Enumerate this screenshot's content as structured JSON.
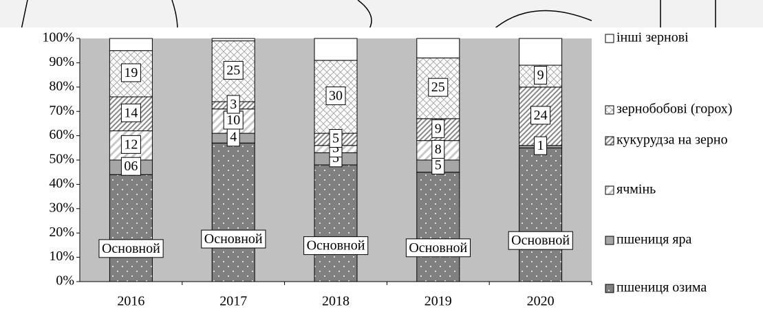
{
  "chart_data": {
    "type": "bar",
    "stacked": true,
    "categories": [
      "2016",
      "2017",
      "2018",
      "2019",
      "2020"
    ],
    "ylim": [
      0,
      100
    ],
    "yticks": [
      {
        "value": 0,
        "label": "0%"
      },
      {
        "value": 10,
        "label": "10%"
      },
      {
        "value": 20,
        "label": "20%"
      },
      {
        "value": 30,
        "label": "30%"
      },
      {
        "value": 40,
        "label": "40%"
      },
      {
        "value": 50,
        "label": "50%"
      },
      {
        "value": 60,
        "label": "60%"
      },
      {
        "value": 70,
        "label": "70%"
      },
      {
        "value": 80,
        "label": "80%"
      },
      {
        "value": 90,
        "label": "90%"
      },
      {
        "value": 100,
        "label": "100%"
      }
    ],
    "series": [
      {
        "name": "пшениця озима",
        "color": "#808080",
        "values": [
          44,
          57,
          48,
          45,
          55
        ],
        "value_labels": [
          "Основной",
          "Основной",
          "Основной",
          "Основной",
          "Основной"
        ]
      },
      {
        "name": "пшениця яра",
        "color": "#a6a6a6",
        "values": [
          6,
          4,
          5,
          5,
          1
        ],
        "value_labels": [
          "06",
          "4",
          "5",
          "5",
          "1"
        ]
      },
      {
        "name": "ячмінь",
        "color": "#d9d9d9",
        "values": [
          12,
          10,
          3,
          8,
          0
        ],
        "value_labels": [
          "12",
          "10",
          "3",
          "8",
          null
        ]
      },
      {
        "name": "кукурудза на зерно",
        "color": "#bfbfbf",
        "values": [
          14,
          3,
          5,
          9,
          24
        ],
        "value_labels": [
          "14",
          "3",
          "5",
          "9",
          "24"
        ]
      },
      {
        "name": "зернобобові (горох)",
        "color": "#e6e6e6",
        "values": [
          19,
          25,
          30,
          25,
          9
        ],
        "value_labels": [
          "19",
          "25",
          "30",
          "25",
          "9"
        ]
      },
      {
        "name": "інші зернові",
        "color": "#ffffff",
        "values": [
          5,
          1,
          9,
          8,
          11
        ],
        "value_labels": [
          null,
          null,
          null,
          null,
          null
        ]
      }
    ]
  }
}
